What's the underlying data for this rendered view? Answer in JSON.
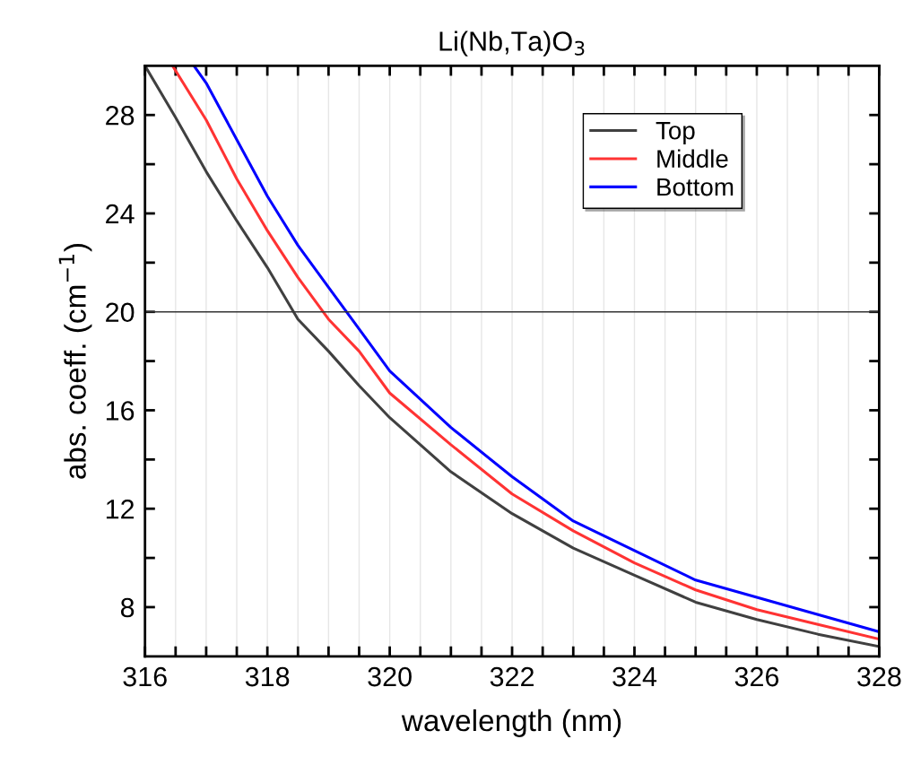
{
  "chart_data": {
    "type": "line",
    "title": "Li(Nb,Ta)O$_{3}$",
    "xlabel": "wavelength (nm)",
    "ylabel": "abs. coeff. (cm$^{−1}$)",
    "x": [
      316,
      316.5,
      317,
      317.5,
      318,
      318.5,
      319,
      319.5,
      320,
      321,
      322,
      323,
      324,
      325,
      326,
      327,
      328
    ],
    "series": [
      {
        "name": "Top",
        "color": "#404040",
        "values": [
          30.0,
          27.9,
          25.7,
          23.7,
          21.8,
          19.7,
          18.4,
          17.0,
          15.7,
          13.5,
          11.8,
          10.4,
          9.3,
          8.2,
          7.5,
          6.9,
          6.4
        ]
      },
      {
        "name": "Middle",
        "color": "#ff3333",
        "x": [
          316.45,
          317,
          317.5,
          318,
          318.5,
          319,
          319.5,
          320,
          321,
          322,
          323,
          324,
          325,
          326,
          327,
          328
        ],
        "values": [
          30.0,
          27.8,
          25.4,
          23.3,
          21.4,
          19.7,
          18.4,
          16.7,
          14.6,
          12.6,
          11.1,
          9.8,
          8.7,
          7.9,
          7.3,
          6.7
        ]
      },
      {
        "name": "Bottom",
        "color": "#0000ff",
        "x": [
          316.8,
          317,
          317.5,
          318,
          318.5,
          319,
          319.5,
          320,
          321,
          322,
          323,
          324,
          325,
          326,
          327,
          328
        ],
        "values": [
          30.0,
          29.3,
          27.0,
          24.7,
          22.7,
          21.0,
          19.3,
          17.6,
          15.3,
          13.3,
          11.5,
          10.3,
          9.1,
          8.4,
          7.7,
          7.0
        ]
      }
    ],
    "xlim": [
      316,
      328
    ],
    "xticks": [
      316,
      {
        "value": 316.5,
        "label": null
      },
      {
        "value": 317,
        "label": null
      },
      {
        "value": 317.5,
        "label": null
      },
      318,
      {
        "value": 318.5,
        "label": null
      },
      {
        "value": 319,
        "label": null
      },
      {
        "value": 319.5,
        "label": null
      },
      320,
      {
        "value": 320.5,
        "label": null
      },
      {
        "value": 321,
        "label": null
      },
      {
        "value": 321.5,
        "label": null
      },
      322,
      {
        "value": 322.5,
        "label": null
      },
      {
        "value": 323,
        "label": null
      },
      {
        "value": 323.5,
        "label": null
      },
      324,
      {
        "value": 324.5,
        "label": null
      },
      {
        "value": 325,
        "label": null
      },
      {
        "value": 325.5,
        "label": null
      },
      326,
      {
        "value": 326.5,
        "label": null
      },
      {
        "value": 327,
        "label": null
      },
      {
        "value": 327.5,
        "label": null
      },
      328
    ],
    "ylim": [
      6,
      30
    ],
    "yticks": [
      8,
      {
        "value": 10,
        "label": null
      },
      12,
      {
        "value": 14,
        "label": null
      },
      16,
      {
        "value": 18,
        "label": null
      },
      20,
      {
        "value": 22,
        "label": null
      },
      24,
      {
        "value": 26,
        "label": null
      },
      28
    ],
    "ref_lines": [
      {
        "axis": "y",
        "value": 20,
        "color": "#333333"
      }
    ],
    "grid": "x",
    "legend": "top right",
    "line_style": "solid",
    "marker": "none"
  }
}
